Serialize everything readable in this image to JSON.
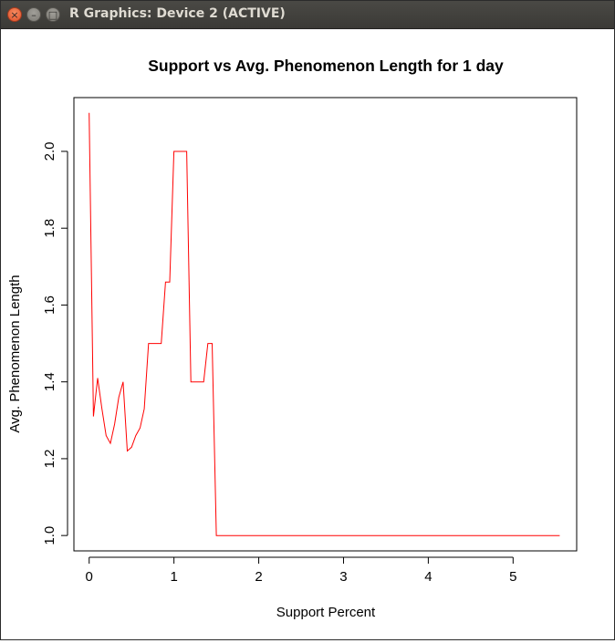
{
  "window": {
    "title": "R Graphics: Device 2 (ACTIVE)",
    "buttons": {
      "close": "×",
      "minimize": "–",
      "maximize": "□"
    }
  },
  "chart_data": {
    "type": "line",
    "title": "Support vs Avg. Phenomenon Length for 1 day",
    "xlabel": "Support Percent",
    "ylabel": "Avg. Phenomenon Length",
    "xlim": [
      -0.18,
      5.75
    ],
    "ylim": [
      0.96,
      2.14
    ],
    "xticks": [
      0,
      1,
      2,
      3,
      4,
      5
    ],
    "xtick_labels": [
      "0",
      "1",
      "2",
      "3",
      "4",
      "5"
    ],
    "yticks": [
      1.0,
      1.2,
      1.4,
      1.6,
      1.8,
      2.0
    ],
    "ytick_labels": [
      "1.0",
      "1.2",
      "1.4",
      "1.6",
      "1.8",
      "2.0"
    ],
    "grid": false,
    "color": "#ff0000",
    "series": [
      {
        "x": [
          0.0,
          0.05,
          0.1,
          0.15,
          0.2,
          0.25,
          0.3,
          0.35,
          0.4,
          0.45,
          0.5,
          0.55,
          0.6,
          0.65,
          0.7,
          0.75,
          0.8,
          0.85,
          0.9,
          0.95,
          1.0,
          1.05,
          1.1,
          1.15,
          1.2,
          1.25,
          1.3,
          1.35,
          1.4,
          1.45,
          1.5,
          1.55,
          2.0,
          3.0,
          4.0,
          5.0,
          5.55
        ],
        "y": [
          2.1,
          1.31,
          1.41,
          1.33,
          1.26,
          1.24,
          1.29,
          1.36,
          1.4,
          1.22,
          1.23,
          1.26,
          1.28,
          1.33,
          1.5,
          1.5,
          1.5,
          1.5,
          1.66,
          1.66,
          2.0,
          2.0,
          2.0,
          2.0,
          1.4,
          1.4,
          1.4,
          1.4,
          1.5,
          1.5,
          1.0,
          1.0,
          1.0,
          1.0,
          1.0,
          1.0,
          1.0
        ]
      }
    ]
  }
}
